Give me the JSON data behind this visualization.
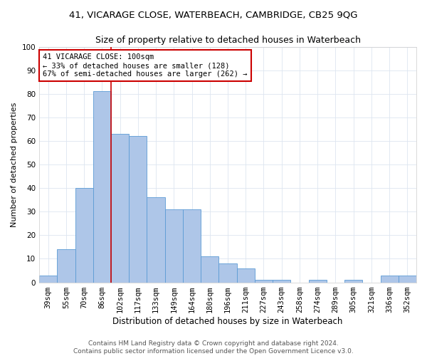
{
  "title": "41, VICARAGE CLOSE, WATERBEACH, CAMBRIDGE, CB25 9QG",
  "subtitle": "Size of property relative to detached houses in Waterbeach",
  "xlabel": "Distribution of detached houses by size in Waterbeach",
  "ylabel": "Number of detached properties",
  "categories": [
    "39sqm",
    "55sqm",
    "70sqm",
    "86sqm",
    "102sqm",
    "117sqm",
    "133sqm",
    "149sqm",
    "164sqm",
    "180sqm",
    "196sqm",
    "211sqm",
    "227sqm",
    "243sqm",
    "258sqm",
    "274sqm",
    "289sqm",
    "305sqm",
    "321sqm",
    "336sqm",
    "352sqm"
  ],
  "values": [
    3,
    14,
    40,
    81,
    63,
    62,
    36,
    31,
    31,
    11,
    8,
    6,
    1,
    1,
    0,
    1,
    0,
    1,
    0,
    3,
    3
  ],
  "bar_color": "#aec6e8",
  "bar_edge_color": "#5b9bd5",
  "red_line_bar_index": 4,
  "ylim": [
    0,
    100
  ],
  "annotation_text": "41 VICARAGE CLOSE: 100sqm\n← 33% of detached houses are smaller (128)\n67% of semi-detached houses are larger (262) →",
  "annotation_box_color": "#ffffff",
  "annotation_box_edge": "#cc0000",
  "footer_line1": "Contains HM Land Registry data © Crown copyright and database right 2024.",
  "footer_line2": "Contains public sector information licensed under the Open Government Licence v3.0.",
  "title_fontsize": 9.5,
  "subtitle_fontsize": 9,
  "xlabel_fontsize": 8.5,
  "ylabel_fontsize": 8,
  "tick_fontsize": 7.5,
  "footer_fontsize": 6.5,
  "annotation_fontsize": 7.5,
  "grid_color": "#dde5f0"
}
